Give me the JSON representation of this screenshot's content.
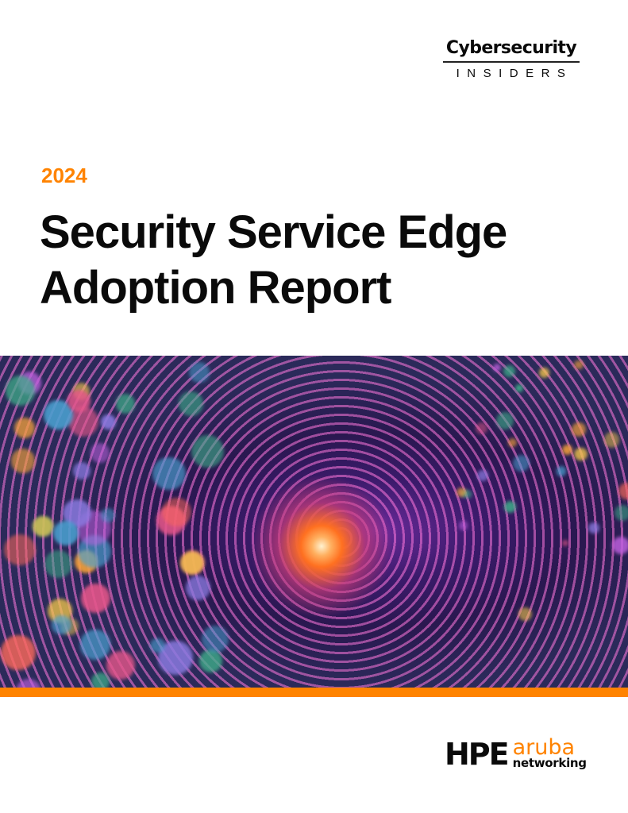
{
  "publisher_logo": {
    "top": "Cybersecurity",
    "bottom": "INSIDERS"
  },
  "year": "2024",
  "title": {
    "line1": "Security Service Edge",
    "line2": "Adoption Report"
  },
  "sponsor_logo": {
    "hpe": "HPE",
    "aruba": "aruba",
    "networking": "networking"
  },
  "colors": {
    "accent": "#ff8300",
    "text": "#0a0a0a"
  }
}
